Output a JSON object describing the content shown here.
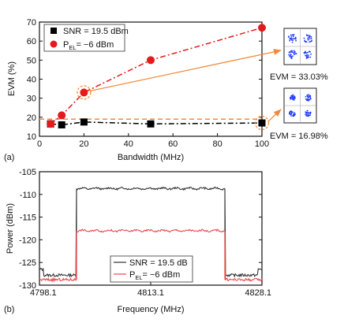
{
  "chart_data": [
    {
      "type": "scatter",
      "panel_label": "(a)",
      "xlabel": "Bandwidth (MHz)",
      "ylabel": "EVM (%)",
      "xlim": [
        0,
        100
      ],
      "ylim": [
        10,
        70
      ],
      "xticks": [
        "0",
        "20",
        "40",
        "60",
        "80",
        "100"
      ],
      "yticks": [
        "10",
        "20",
        "30",
        "40",
        "50",
        "60",
        "70"
      ],
      "grid": false,
      "legend_position": "top-left",
      "series": [
        {
          "name": "SNR = 19.5 dBm",
          "label_parts": [
            "SNR = 19.5 dBm"
          ],
          "marker": "square",
          "color": "#000000",
          "line_style": "dash-dot",
          "x": [
            5,
            10,
            20,
            50,
            100
          ],
          "y": [
            16.5,
            16.0,
            17.5,
            16.5,
            17.0
          ]
        },
        {
          "name": "P_EL = −6 dBm",
          "label_parts": [
            "P",
            "EL",
            "= −6 dBm"
          ],
          "marker": "circle",
          "color": "#e41a1c",
          "line_style": "dash-dot",
          "x": [
            5,
            10,
            20,
            50,
            100
          ],
          "y": [
            16.5,
            21.0,
            33.0,
            50.0,
            67.0
          ]
        }
      ],
      "reference_line": {
        "y": 19,
        "color": "#f28a3c",
        "style": "dashed"
      },
      "annotations": [
        {
          "target_series": "P_EL = −6 dBm",
          "x": 20,
          "y": 33.0,
          "text": "EVM = 33.03%",
          "constellation": "4-QAM"
        },
        {
          "target_series": "SNR = 19.5 dBm",
          "x": 100,
          "y": 17.0,
          "text": "EVM = 16.98%",
          "constellation": "4-QAM"
        }
      ]
    },
    {
      "type": "line",
      "panel_label": "(b)",
      "xlabel": "Frequency (MHz)",
      "ylabel": "Power (dBm)",
      "xlim": [
        4798.1,
        4828.1
      ],
      "ylim": [
        -130,
        -105
      ],
      "xticks": [
        "4798.1",
        "4813.1",
        "4828.1"
      ],
      "yticks": [
        "-105",
        "-110",
        "-115",
        "-120",
        "-125",
        "-130"
      ],
      "grid": false,
      "legend_position": "bottom-center",
      "series": [
        {
          "name": "SNR = 19.5 dB",
          "label_parts": [
            "SNR = 19.5 dB"
          ],
          "color": "#333333",
          "band_edges_mhz": [
            4803.1,
            4823.1
          ],
          "in_band_level_dbm": -108.7,
          "out_of_band_level_dbm": -127.8
        },
        {
          "name": "P_EL = −6 dBm",
          "label_parts": [
            "P",
            "EL",
            "= −6 dBm"
          ],
          "color": "#e8474a",
          "band_edges_mhz": [
            4803.1,
            4823.1
          ],
          "in_band_level_dbm": -118.0,
          "out_of_band_level_dbm": -128.8
        }
      ]
    }
  ]
}
